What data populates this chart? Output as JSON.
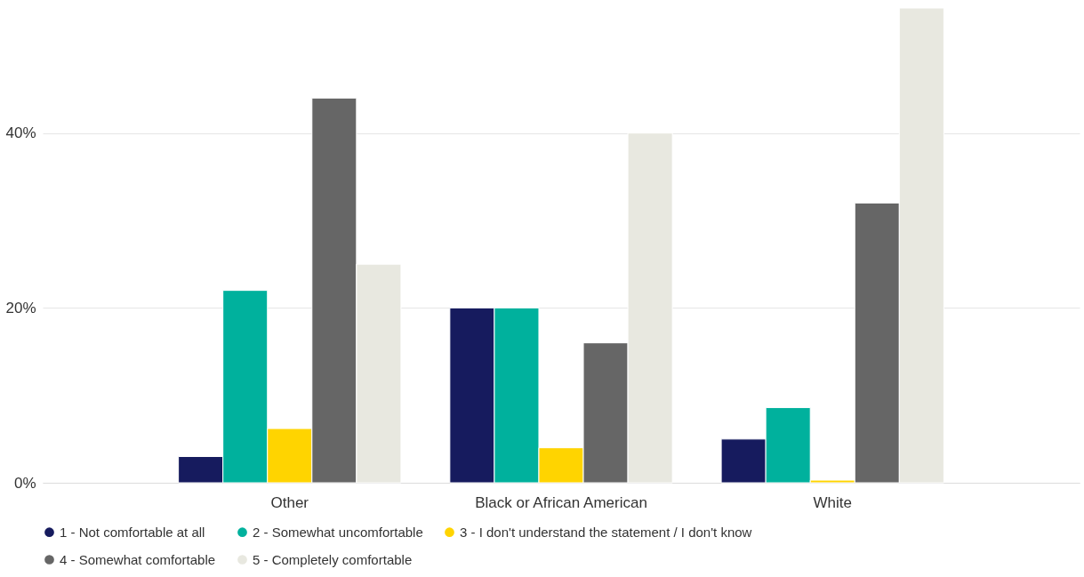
{
  "chart_data": {
    "type": "bar",
    "categories": [
      "Other",
      "Black or African American",
      "White"
    ],
    "series": [
      {
        "name": "1 - Not comfortable at all",
        "color": "#161b5e",
        "values": [
          3,
          20,
          5
        ]
      },
      {
        "name": "2 - Somewhat uncomfortable",
        "color": "#00b19d",
        "values": [
          22,
          20,
          8.6
        ]
      },
      {
        "name": "3 - I don't understand the statement / I don't know",
        "color": "#ffd400",
        "values": [
          6.2,
          4,
          0.3
        ]
      },
      {
        "name": "4 - Somewhat comfortable",
        "color": "#666666",
        "values": [
          44,
          16,
          32
        ]
      },
      {
        "name": "5 - Completely comfortable",
        "color": "#e8e8e0",
        "values": [
          25,
          40,
          54.3
        ]
      }
    ],
    "yticks": [
      {
        "value": 0,
        "label": "0%"
      },
      {
        "value": 20,
        "label": "20%"
      },
      {
        "value": 40,
        "label": "40%"
      }
    ],
    "ylim": [
      0,
      54.3
    ],
    "grid": "y",
    "legend": "bottom"
  }
}
